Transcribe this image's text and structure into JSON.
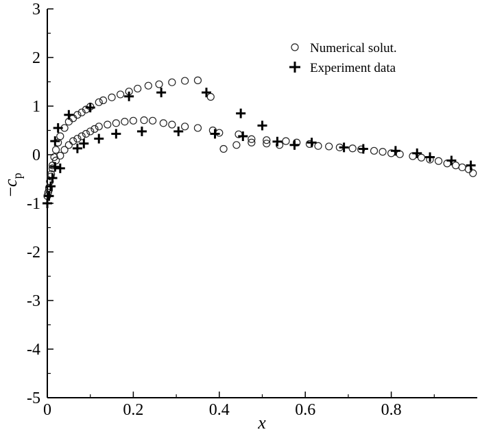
{
  "chart_data": {
    "type": "scatter",
    "xlabel": "x",
    "ylabel": "−cₚ",
    "ylabel_parts": {
      "minus": "−",
      "base": "c",
      "sub": "p"
    },
    "xlim": [
      0,
      1.0
    ],
    "ylim": [
      -5,
      3
    ],
    "xticks": [
      0,
      0.2,
      0.4,
      0.6,
      0.8
    ],
    "xtick_labels": [
      "0",
      "0.2",
      "0.4",
      "0.6",
      "0.8"
    ],
    "yticks": [
      -5,
      -4,
      -3,
      -2,
      -1,
      0,
      1,
      2,
      3
    ],
    "ytick_labels": [
      "-5",
      "-4",
      "-3",
      "-2",
      "-1",
      "0",
      "1",
      "2",
      "3"
    ],
    "grid": false,
    "legend_position": "top-right",
    "series": [
      {
        "name": "Numerical solut.",
        "marker": "open-circle",
        "points": [
          [
            0.0,
            -0.85
          ],
          [
            0.002,
            -0.78
          ],
          [
            0.004,
            -0.68
          ],
          [
            0.006,
            -0.55
          ],
          [
            0.009,
            -0.4
          ],
          [
            0.012,
            -0.22
          ],
          [
            0.016,
            -0.05
          ],
          [
            0.02,
            0.1
          ],
          [
            0.025,
            0.25
          ],
          [
            0.03,
            0.38
          ],
          [
            0.04,
            0.55
          ],
          [
            0.05,
            0.68
          ],
          [
            0.06,
            0.75
          ],
          [
            0.07,
            0.82
          ],
          [
            0.08,
            0.87
          ],
          [
            0.09,
            0.93
          ],
          [
            0.1,
            0.99
          ],
          [
            0.12,
            1.08
          ],
          [
            0.13,
            1.12
          ],
          [
            0.15,
            1.18
          ],
          [
            0.17,
            1.24
          ],
          [
            0.19,
            1.3
          ],
          [
            0.21,
            1.36
          ],
          [
            0.235,
            1.42
          ],
          [
            0.26,
            1.45
          ],
          [
            0.29,
            1.49
          ],
          [
            0.32,
            1.52
          ],
          [
            0.35,
            1.53
          ],
          [
            0.38,
            1.19
          ],
          [
            0.004,
            -0.72
          ],
          [
            0.008,
            -0.45
          ],
          [
            0.012,
            -0.28
          ],
          [
            0.02,
            -0.12
          ],
          [
            0.03,
            -0.02
          ],
          [
            0.04,
            0.1
          ],
          [
            0.05,
            0.2
          ],
          [
            0.06,
            0.28
          ],
          [
            0.07,
            0.33
          ],
          [
            0.08,
            0.38
          ],
          [
            0.09,
            0.43
          ],
          [
            0.1,
            0.48
          ],
          [
            0.11,
            0.53
          ],
          [
            0.12,
            0.58
          ],
          [
            0.14,
            0.62
          ],
          [
            0.16,
            0.65
          ],
          [
            0.18,
            0.68
          ],
          [
            0.2,
            0.7
          ],
          [
            0.225,
            0.71
          ],
          [
            0.245,
            0.7
          ],
          [
            0.27,
            0.65
          ],
          [
            0.29,
            0.62
          ],
          [
            0.32,
            0.58
          ],
          [
            0.35,
            0.55
          ],
          [
            0.385,
            0.5
          ],
          [
            0.4,
            0.45
          ],
          [
            0.41,
            0.12
          ],
          [
            0.44,
            0.2
          ],
          [
            0.445,
            0.42
          ],
          [
            0.475,
            0.32
          ],
          [
            0.475,
            0.25
          ],
          [
            0.51,
            0.3
          ],
          [
            0.51,
            0.23
          ],
          [
            0.54,
            0.2
          ],
          [
            0.555,
            0.28
          ],
          [
            0.58,
            0.25
          ],
          [
            0.61,
            0.22
          ],
          [
            0.63,
            0.18
          ],
          [
            0.655,
            0.17
          ],
          [
            0.68,
            0.15
          ],
          [
            0.71,
            0.13
          ],
          [
            0.73,
            0.11
          ],
          [
            0.76,
            0.08
          ],
          [
            0.78,
            0.06
          ],
          [
            0.8,
            0.03
          ],
          [
            0.82,
            0.01
          ],
          [
            0.85,
            -0.03
          ],
          [
            0.87,
            -0.06
          ],
          [
            0.89,
            -0.1
          ],
          [
            0.91,
            -0.13
          ],
          [
            0.93,
            -0.18
          ],
          [
            0.95,
            -0.22
          ],
          [
            0.965,
            -0.26
          ],
          [
            0.98,
            -0.3
          ],
          [
            0.99,
            -0.38
          ]
        ]
      },
      {
        "name": "Experiment data",
        "marker": "plus",
        "points": [
          [
            0.0,
            -1.0
          ],
          [
            0.004,
            -0.85
          ],
          [
            0.008,
            -0.65
          ],
          [
            0.012,
            -0.48
          ],
          [
            0.018,
            0.28
          ],
          [
            0.025,
            0.55
          ],
          [
            0.05,
            0.82
          ],
          [
            0.1,
            0.97
          ],
          [
            0.19,
            1.2
          ],
          [
            0.265,
            1.28
          ],
          [
            0.37,
            1.28
          ],
          [
            0.018,
            -0.25
          ],
          [
            0.03,
            -0.28
          ],
          [
            0.07,
            0.13
          ],
          [
            0.085,
            0.23
          ],
          [
            0.12,
            0.33
          ],
          [
            0.16,
            0.43
          ],
          [
            0.22,
            0.48
          ],
          [
            0.305,
            0.48
          ],
          [
            0.39,
            0.43
          ],
          [
            0.45,
            0.85
          ],
          [
            0.455,
            0.38
          ],
          [
            0.5,
            0.6
          ],
          [
            0.535,
            0.27
          ],
          [
            0.575,
            0.2
          ],
          [
            0.615,
            0.25
          ],
          [
            0.69,
            0.15
          ],
          [
            0.735,
            0.12
          ],
          [
            0.81,
            0.08
          ],
          [
            0.86,
            0.03
          ],
          [
            0.89,
            -0.05
          ],
          [
            0.94,
            -0.12
          ],
          [
            0.985,
            -0.22
          ]
        ]
      }
    ]
  }
}
